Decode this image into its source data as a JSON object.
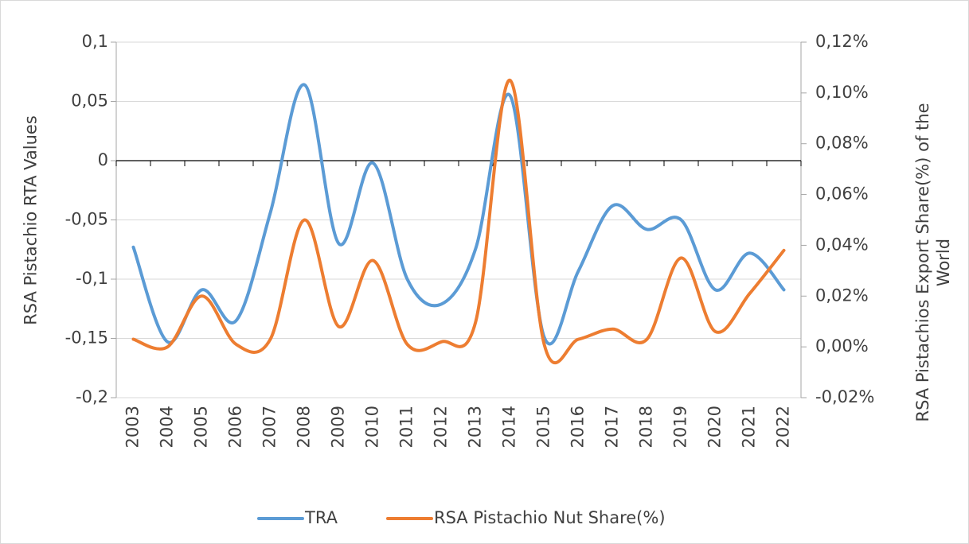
{
  "chart_data": {
    "type": "line",
    "categories": [
      "2003",
      "2004",
      "2005",
      "2006",
      "2007",
      "2008",
      "2009",
      "2010",
      "2011",
      "2012",
      "2013",
      "2014",
      "2015",
      "2016",
      "2017",
      "2018",
      "2019",
      "2020",
      "2021",
      "2022"
    ],
    "series": [
      {
        "name": "TRA",
        "color": "#5b9bd5",
        "values": [
          -0.073,
          -0.153,
          -0.109,
          -0.135,
          -0.044,
          0.064,
          -0.07,
          -0.002,
          -0.1,
          -0.121,
          -0.074,
          0.055,
          -0.149,
          -0.093,
          -0.038,
          -0.058,
          -0.05,
          -0.109,
          -0.078,
          -0.109
        ]
      },
      {
        "name": "RSA Pistachio Nut Share(%)",
        "color": "#ed7d31",
        "axis": "y2",
        "values": [
          0.003,
          0.0,
          0.02,
          0.001,
          0.003,
          0.05,
          0.008,
          0.034,
          0.001,
          0.002,
          0.01,
          0.105,
          0.001,
          0.003,
          0.007,
          0.003,
          0.035,
          0.006,
          0.021,
          0.038
        ]
      }
    ],
    "ylabel": "RSA Pistachio RTA Values",
    "y2label": "RSA Pistachios Export Share(%) of the World",
    "ylim": [
      -0.2,
      0.1
    ],
    "yticks": [
      {
        "value": 0.1,
        "label": "0,1"
      },
      {
        "value": 0.05,
        "label": "0,05"
      },
      0,
      {
        "value": -0.05,
        "label": "-0,05"
      },
      {
        "value": -0.1,
        "label": "-0,1"
      },
      {
        "value": -0.15,
        "label": "-0,15"
      },
      {
        "value": -0.2,
        "label": "-0,2"
      }
    ],
    "y2lim": [
      -0.02,
      0.12
    ],
    "y2ticks": [
      {
        "value": 0.12,
        "label": "0,12%"
      },
      {
        "value": 0.1,
        "label": "0,10%"
      },
      {
        "value": 0.08,
        "label": "0,08%"
      },
      {
        "value": 0.06,
        "label": "0,06%"
      },
      {
        "value": 0.04,
        "label": "0,04%"
      },
      {
        "value": 0.02,
        "label": "0,02%"
      },
      {
        "value": 0.0,
        "label": "0,00%"
      },
      {
        "value": -0.02,
        "label": "-0,02%"
      }
    ],
    "grid": true,
    "legend": "bottom"
  }
}
